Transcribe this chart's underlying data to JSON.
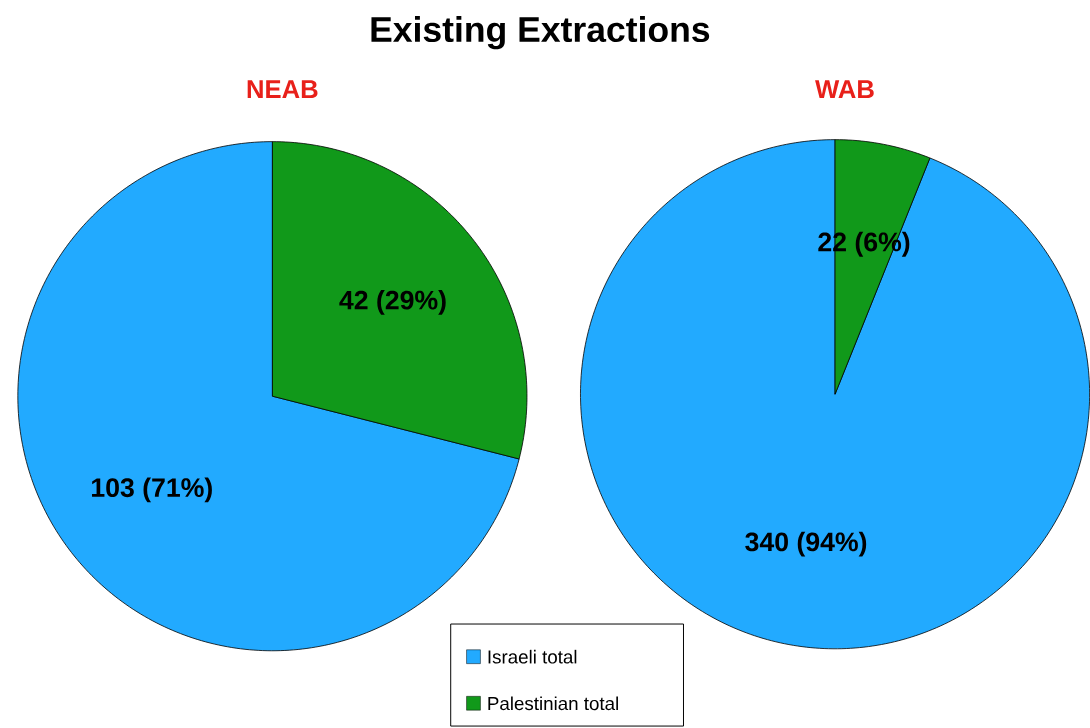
{
  "chart_data": [
    {
      "type": "pie",
      "title": "Existing Extractions",
      "subtitle": "NEAB",
      "categories": [
        "Israeli total",
        "Palestinian total"
      ],
      "values": [
        103,
        42
      ],
      "colors": [
        "#22aaff",
        "#11991a"
      ],
      "value_labels": [
        "103 (71%)",
        "42 (29%)"
      ],
      "legend": "bottom"
    },
    {
      "type": "pie",
      "subtitle": "WAB",
      "categories": [
        null,
        null
      ],
      "values": [
        340,
        22
      ],
      "colors": [
        "#22aaff",
        "#11991a"
      ],
      "value_labels": [
        "340 (94%)",
        "22 (6%)"
      ]
    }
  ]
}
